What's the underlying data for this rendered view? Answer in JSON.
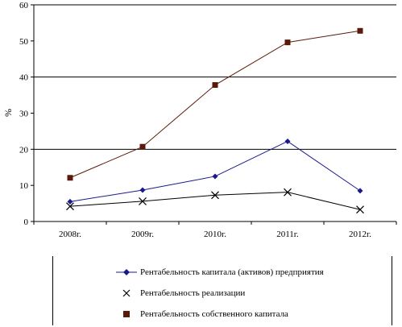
{
  "chart_data": {
    "type": "line",
    "categories": [
      "2008г.",
      "2009г.",
      "2010г.",
      "2011г.",
      "2012г."
    ],
    "ylabel": "%",
    "ylim": [
      0,
      60
    ],
    "yticks": [
      "0",
      "10",
      "20",
      "30",
      "40",
      "50",
      "60"
    ],
    "grid": "horizontal at 20, 40, 60",
    "legend_position": "bottom",
    "series": [
      {
        "name": "Рентабельность капитала (активов) предприятия",
        "values": [
          5.5,
          8.7,
          12.5,
          22.2,
          8.5
        ],
        "color": "#1a1a8c",
        "marker": "diamond"
      },
      {
        "name": "Рентабельность реализации",
        "values": [
          4.2,
          5.6,
          7.3,
          8.1,
          3.3
        ],
        "color": "#000000",
        "marker": "x"
      },
      {
        "name": "Рентабельность собственного капитала",
        "values": [
          12.1,
          20.7,
          37.8,
          49.6,
          52.8
        ],
        "color": "#5a1a0a",
        "marker": "square"
      }
    ]
  }
}
